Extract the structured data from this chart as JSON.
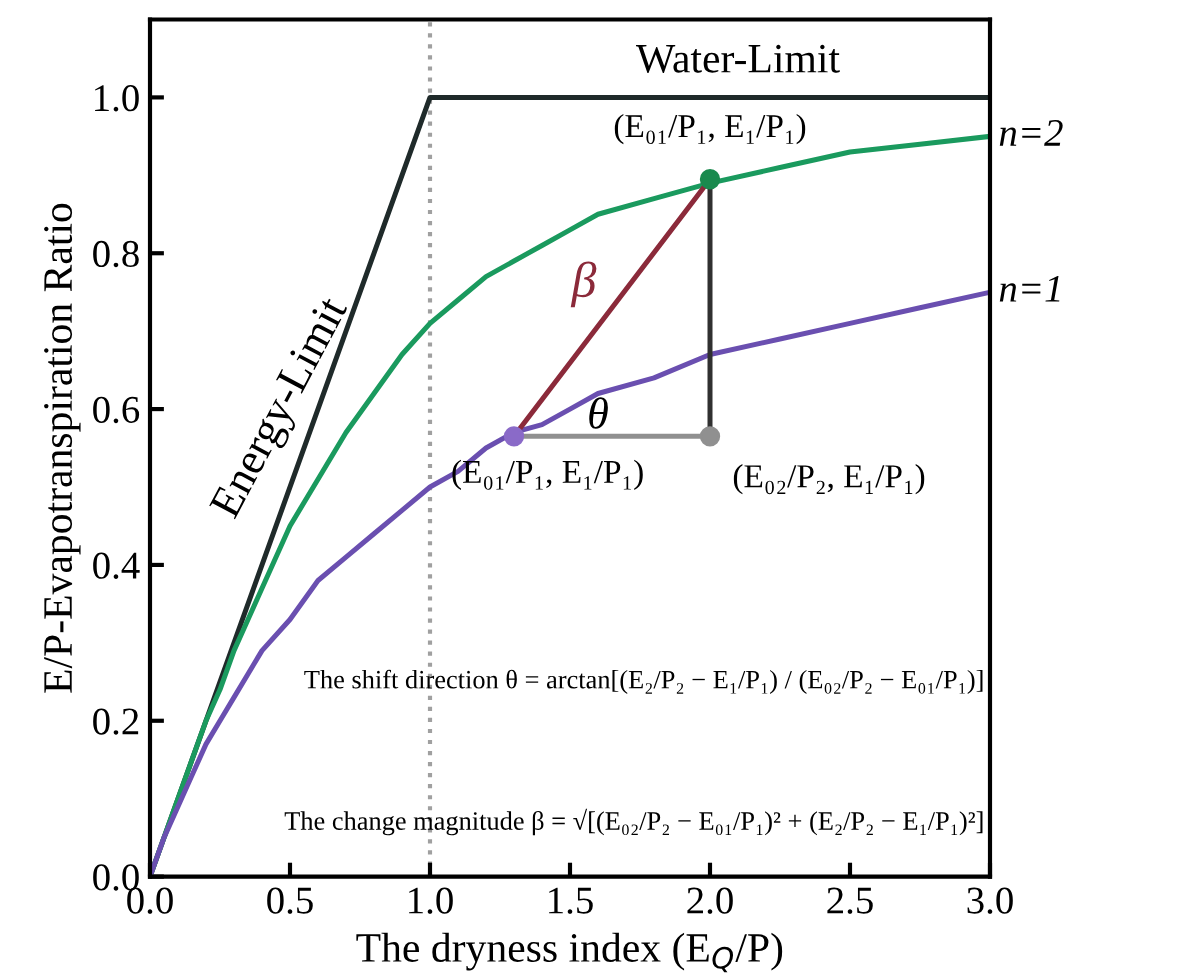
{
  "chart_data": {
    "type": "line",
    "xlabel": "The dryness index (E$_{Q}$/P)",
    "ylabel": "E/P-Evapotranspiration Ratio",
    "xlim": [
      0,
      3
    ],
    "ylim": [
      0,
      1.1
    ],
    "xticks": [
      {
        "value": 0,
        "label": "0.0"
      },
      0.5,
      {
        "value": 1,
        "label": "1.0"
      },
      1.5,
      {
        "value": 2,
        "label": "2.0"
      },
      2.5,
      {
        "value": 3,
        "label": "3.0"
      }
    ],
    "yticks": [
      {
        "value": 0,
        "label": "0.0"
      },
      0.2,
      0.4,
      0.6,
      0.8,
      {
        "value": 1,
        "label": "1.0"
      }
    ],
    "grid": false,
    "marker": "none",
    "line_style": "solid",
    "series": [
      {
        "type": "line",
        "color": "#1f2a2a",
        "x": [
          0,
          1,
          3
        ],
        "values": [
          0,
          1,
          1
        ]
      },
      {
        "type": "line",
        "name": "n=2",
        "color": "#1a9a5e",
        "x": [
          0,
          0.05,
          0.1,
          0.15,
          0.2,
          0.25,
          0.3,
          0.35,
          0.4,
          0.5,
          0.6,
          0.7,
          0.8,
          0.9,
          1,
          1.1,
          1.2,
          1.3,
          1.4,
          1.5,
          1.6,
          1.8,
          2,
          2.25,
          2.5,
          2.75,
          3
        ],
        "values": [
          0,
          0.05,
          0.1,
          0.15,
          0.2,
          0.24,
          0.29,
          0.33,
          0.37,
          0.45,
          0.51,
          0.57,
          0.62,
          0.67,
          0.71,
          0.74,
          0.77,
          0.79,
          0.81,
          0.83,
          0.85,
          0.87,
          0.89,
          0.91,
          0.93,
          0.94,
          0.95
        ]
      },
      {
        "type": "line",
        "name": "n=1",
        "color": "#6a4fb0",
        "x": [
          0,
          0.05,
          0.1,
          0.15,
          0.2,
          0.25,
          0.3,
          0.35,
          0.4,
          0.5,
          0.6,
          0.7,
          0.8,
          0.9,
          1,
          1.1,
          1.2,
          1.3,
          1.4,
          1.5,
          1.6,
          1.8,
          2,
          2.25,
          2.5,
          2.75,
          3
        ],
        "values": [
          0,
          0.05,
          0.09,
          0.13,
          0.17,
          0.2,
          0.23,
          0.26,
          0.29,
          0.33,
          0.38,
          0.41,
          0.44,
          0.47,
          0.5,
          0.52,
          0.55,
          0.57,
          0.58,
          0.6,
          0.62,
          0.64,
          0.67,
          0.69,
          0.71,
          0.73,
          0.75
        ]
      },
      {
        "type": "line",
        "color": "#8b2a3a",
        "x": [
          1.3,
          2
        ],
        "values": [
          0.565,
          0.895
        ]
      },
      {
        "type": "line",
        "color": "#909090",
        "x": [
          1.3,
          2
        ],
        "values": [
          0.565,
          0.565
        ]
      },
      {
        "type": "line",
        "color": "#303030",
        "x": [
          2,
          2
        ],
        "values": [
          0.565,
          0.895
        ]
      },
      {
        "type": "scatter",
        "marker": "circle",
        "x": [
          1.3,
          2,
          2
        ],
        "values": [
          0.565,
          0.895,
          0.565
        ],
        "colors": [
          "#8a6ac8",
          "#1a8a4e",
          "#909090"
        ]
      }
    ],
    "ref_lines": [
      {
        "axis": "x",
        "value": 1,
        "color": "#a0a0a0",
        "line_style": "dotted"
      }
    ],
    "annotations": [
      "Water-Limit",
      "Energy-Limit",
      "β",
      "θ",
      "(E₀₁/P₁, E₁/P₁)",
      "(E₀₁/P₁, E₁/P₁)",
      "(E₀₂/P₂, E₁/P₁)",
      "The shift direction θ = arctan[(E₂/P₂ − E₁/P₁) / (E₀₂/P₂ − E₀₁/P₁)]",
      "The change magnitude β = √[(E₀₂/P₂ − E₀₁/P₁)² + (E₂/P₂ − E₁/P₁)²]"
    ]
  }
}
